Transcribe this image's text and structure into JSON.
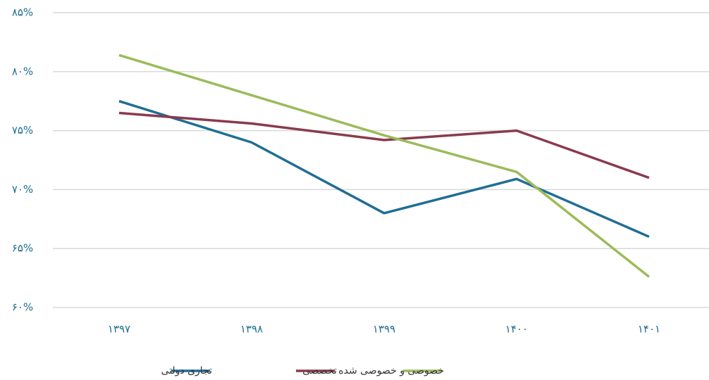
{
  "chart_data": {
    "type": "line",
    "categories": [
      "۱۳۹۷",
      "۱۳۹۸",
      "۱۳۹۹",
      "۱۴۰۰",
      "۱۴۰۱"
    ],
    "series": [
      {
        "name": "تجاری دولتی",
        "color": "#1f6e94",
        "values": [
          77.5,
          74.0,
          68.0,
          70.9,
          66.0
        ]
      },
      {
        "name": "تخصصی",
        "color": "#8b3a4e",
        "values": [
          76.5,
          75.6,
          74.2,
          75.0,
          71.0
        ]
      },
      {
        "name": "خصوصی و خصوصی شده",
        "color": "#9bbb59",
        "values": [
          81.4,
          78.0,
          74.6,
          71.5,
          62.6
        ]
      }
    ],
    "ylim": [
      60,
      85
    ],
    "yticks": [
      {
        "value": 60,
        "label": "۶۰%"
      },
      {
        "value": 65,
        "label": "۶۵%"
      },
      {
        "value": 70,
        "label": "۷۰%"
      },
      {
        "value": 75,
        "label": "۷۵%"
      },
      {
        "value": 80,
        "label": "۸۰%"
      },
      {
        "value": 85,
        "label": "۸۵%"
      }
    ],
    "grid": true,
    "legend": "bottom"
  }
}
